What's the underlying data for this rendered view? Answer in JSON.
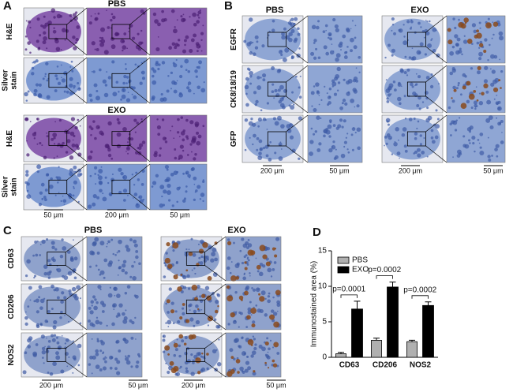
{
  "panels": {
    "A": {
      "label": "A",
      "groups": [
        "PBS",
        "EXO"
      ],
      "rows": [
        [
          "H&E"
        ],
        [
          "Silver",
          "stain"
        ],
        [
          "H&E"
        ],
        [
          "Silver",
          "stain"
        ]
      ],
      "scales": [
        "50 μm",
        "200 μm",
        "50 μm"
      ]
    },
    "B": {
      "label": "B",
      "groups": [
        "PBS",
        "EXO"
      ],
      "rows": [
        [
          "EGFR"
        ],
        [
          "CK8/18/19"
        ],
        [
          "GFP"
        ]
      ],
      "scales": [
        "200 μm",
        "50 μm",
        "200 μm",
        "50 μm"
      ]
    },
    "C": {
      "label": "C",
      "groups": [
        "PBS",
        "EXO"
      ],
      "rows": [
        [
          "CD63"
        ],
        [
          "CD206"
        ],
        [
          "NOS2"
        ]
      ],
      "scales": [
        "200 μm",
        "50 μm",
        "200 μm",
        "50 μm"
      ]
    }
  },
  "chart_data": {
    "type": "bar",
    "label": "D",
    "y_label": "Immunostained area (%)",
    "categories": [
      "CD63",
      "CD206",
      "NOS2"
    ],
    "series": [
      {
        "name": "PBS",
        "color": "#b0b0b0",
        "values": [
          0.5,
          2.4,
          2.2
        ],
        "errors": [
          0.2,
          0.3,
          0.2
        ]
      },
      {
        "name": "EXO",
        "color": "#000000",
        "values": [
          6.8,
          9.9,
          7.3
        ],
        "errors": [
          1.1,
          0.7,
          0.5
        ]
      }
    ],
    "annotations": [
      "p=0.0001",
      "p=0.0002",
      "p=0.0002"
    ],
    "ylim": [
      0,
      15
    ],
    "yticks": [
      0,
      5,
      10,
      15
    ],
    "legend": "upper left"
  }
}
